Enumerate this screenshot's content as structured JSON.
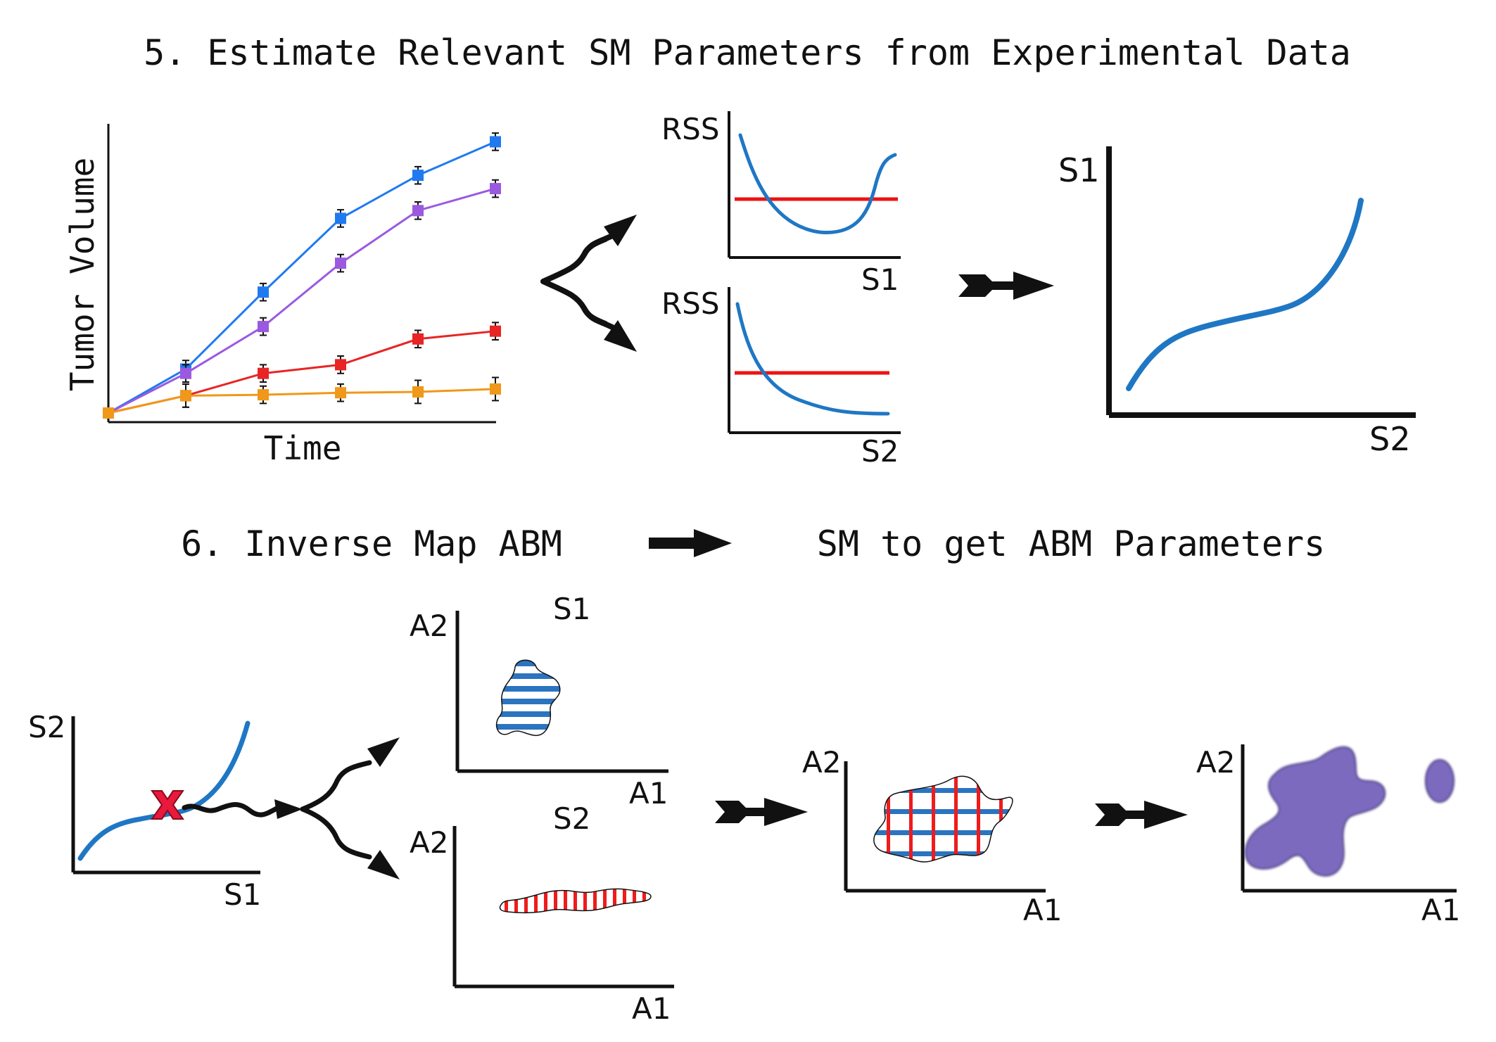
{
  "headings": {
    "step5": "5. Estimate Relevant SM Parameters from Experimental Data",
    "step6_left": "6. Inverse Map ABM",
    "step6_right": "SM to get ABM Parameters"
  },
  "labels": {
    "tumor_ylabel": "Tumor Volume",
    "tumor_xlabel": "Time",
    "rss": "RSS",
    "s1": "S1",
    "s2": "S2",
    "a1": "A1",
    "a2": "A2"
  },
  "colors": {
    "blue_curve": "#1f77c4",
    "red_line": "#ee1111",
    "purple_blob": "#7b6bbf",
    "marker_x": "#e8193c"
  },
  "chart_data": {
    "type": "line",
    "title": "",
    "xlabel": "Time",
    "ylabel": "Tumor Volume",
    "x": [
      0,
      1,
      2,
      3,
      4,
      5
    ],
    "ylim": [
      0,
      1
    ],
    "series": [
      {
        "color": "#1f7af0",
        "values": [
          0.0,
          0.152,
          0.418,
          0.673,
          0.822,
          0.938
        ],
        "errors": [
          0.01,
          0.03,
          0.03,
          0.03,
          0.03,
          0.03
        ]
      },
      {
        "color": "#9b59e0",
        "values": [
          0.0,
          0.137,
          0.299,
          0.518,
          0.7,
          0.776
        ],
        "errors": [
          0.01,
          0.03,
          0.03,
          0.03,
          0.03,
          0.03
        ]
      },
      {
        "color": "#e82424",
        "values": [
          0.0,
          0.06,
          0.137,
          0.167,
          0.256,
          0.283
        ],
        "errors": [
          0.01,
          0.04,
          0.03,
          0.03,
          0.03,
          0.03
        ]
      },
      {
        "color": "#f0981a",
        "values": [
          0.0,
          0.06,
          0.063,
          0.07,
          0.073,
          0.083
        ],
        "errors": [
          0.01,
          0.04,
          0.03,
          0.03,
          0.04,
          0.04
        ]
      }
    ]
  }
}
